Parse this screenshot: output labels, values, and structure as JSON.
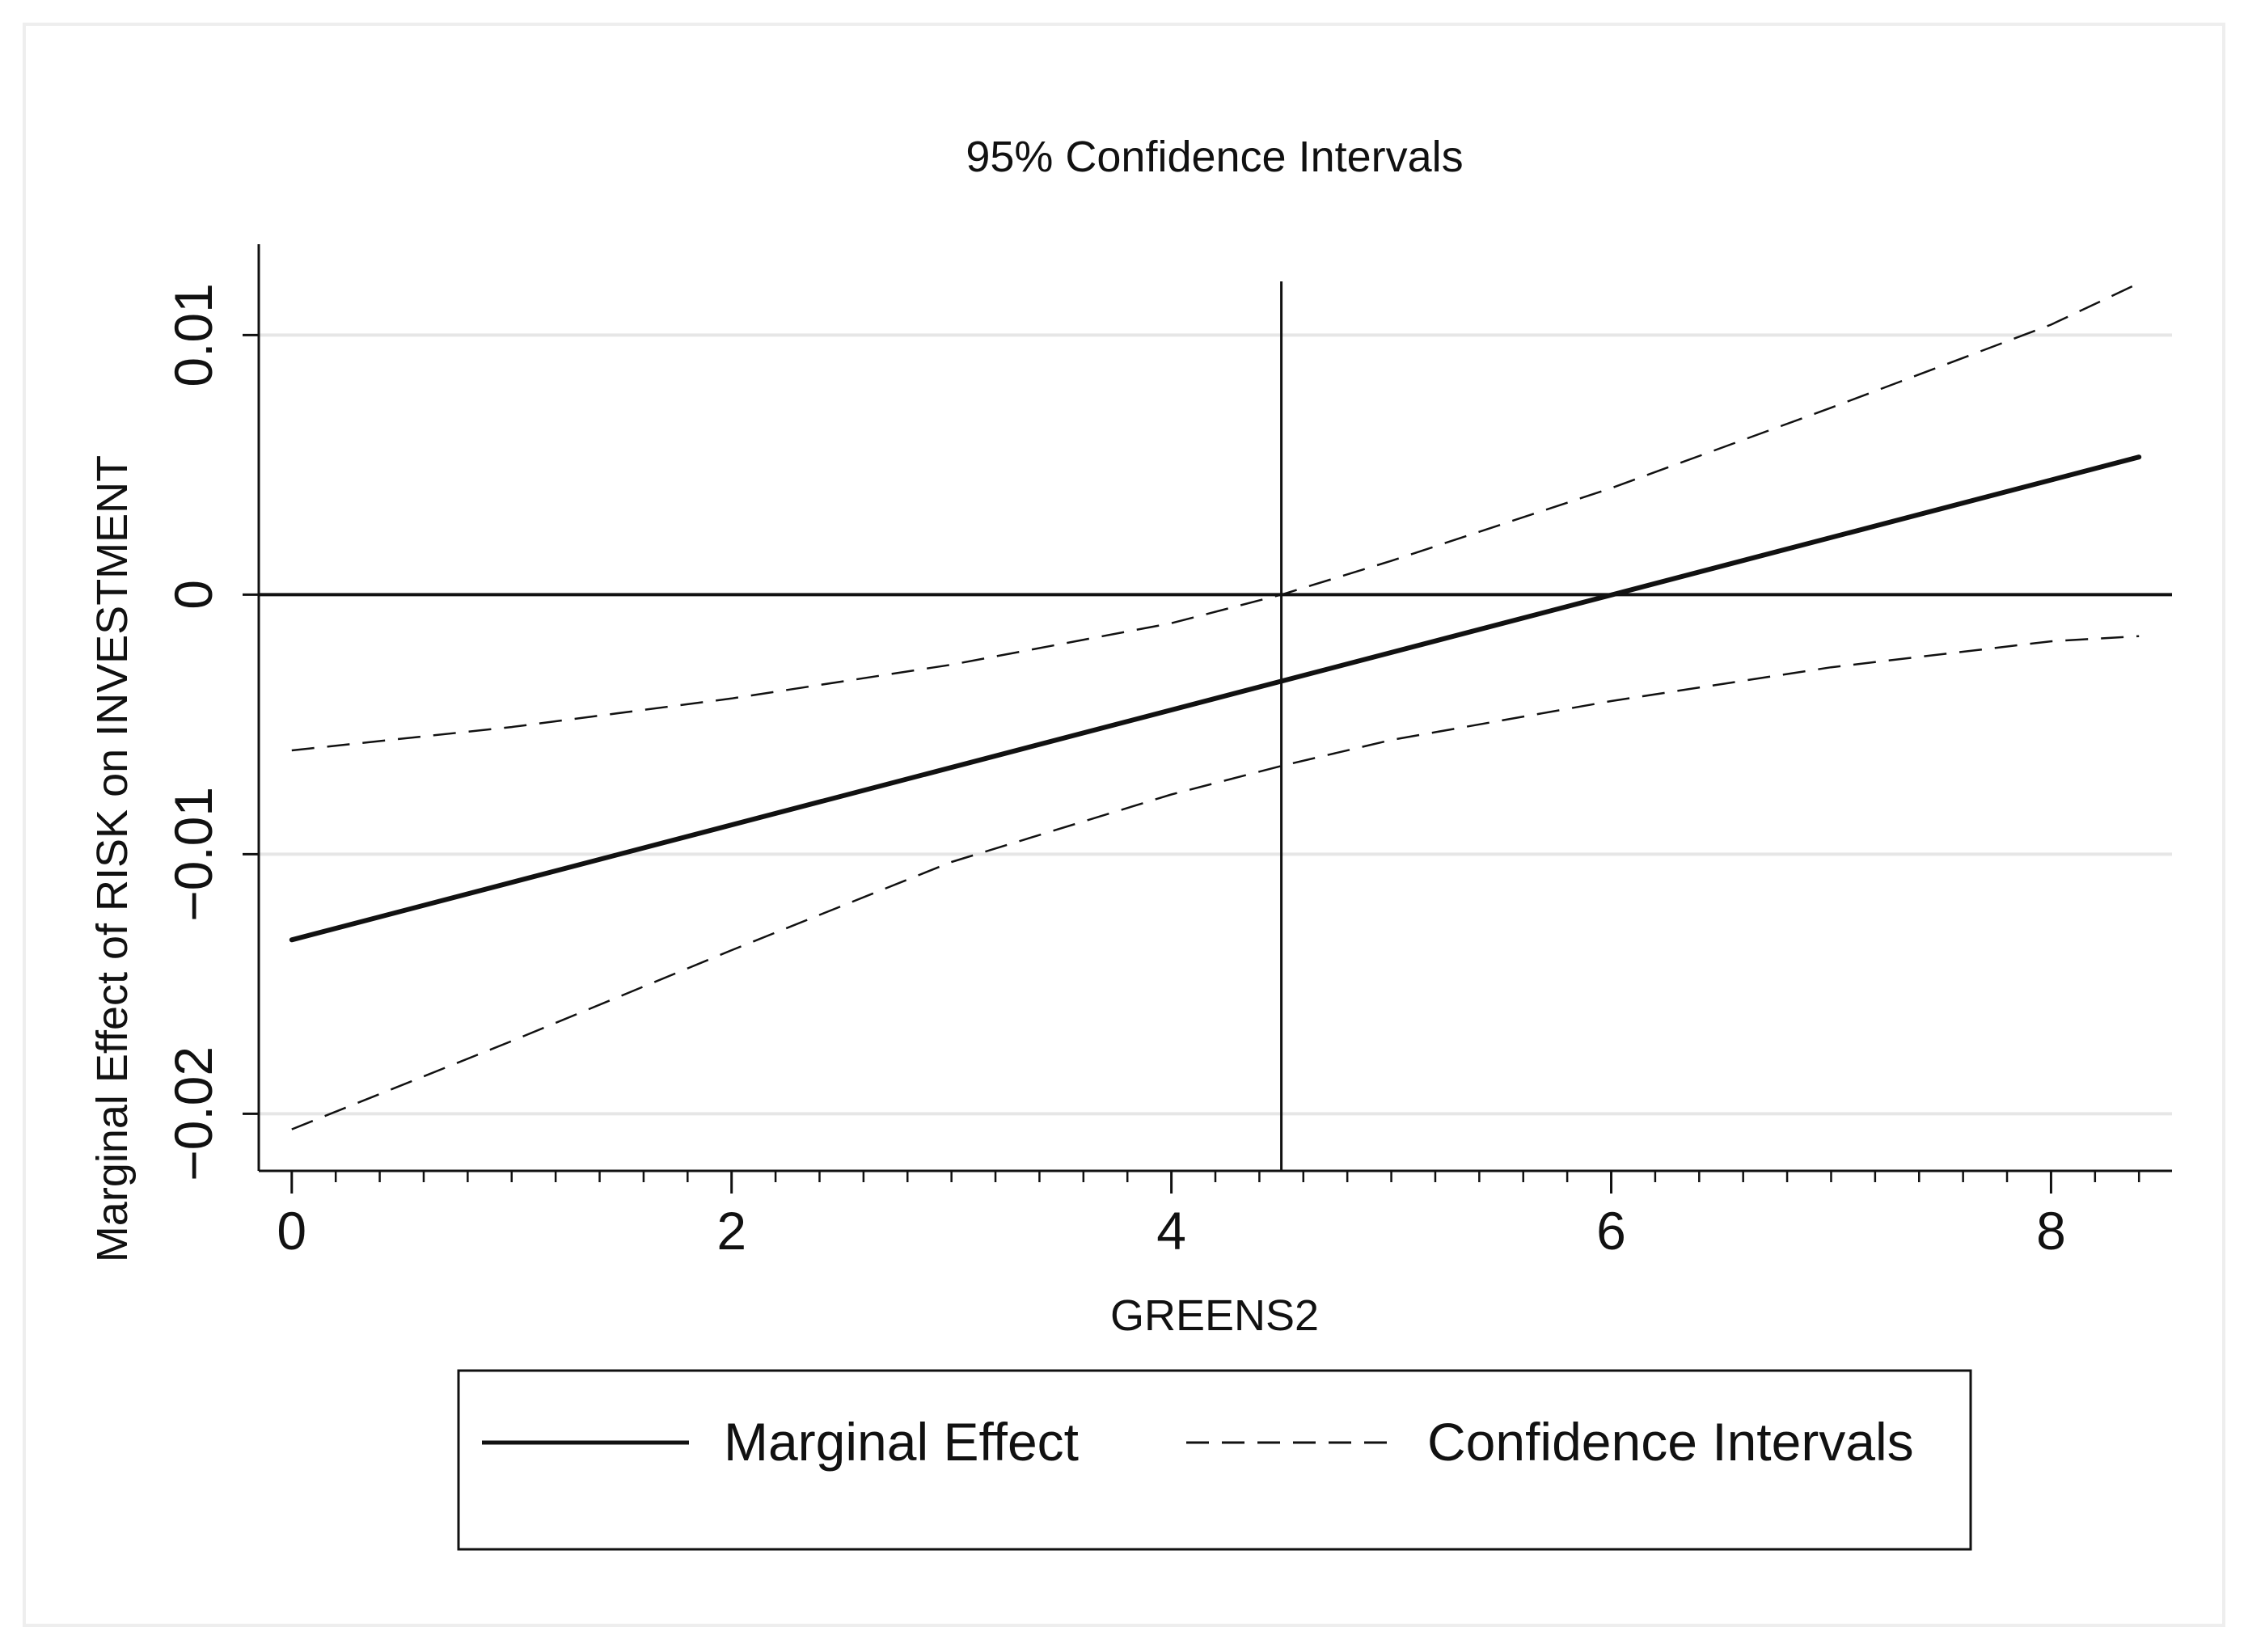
{
  "chart_data": {
    "type": "line",
    "title": "95% Confidence Intervals",
    "xlabel": "GREENS2",
    "ylabel": "Marginal Effect of RISK on INVESTMENT",
    "xlim": [
      -0.15,
      8.55
    ],
    "ylim": [
      -0.0222,
      0.0135
    ],
    "x_ticks": [
      0,
      2,
      4,
      6,
      8
    ],
    "x_tick_labels": [
      "0",
      "2",
      "4",
      "6",
      "8"
    ],
    "x_minor_step": 0.2,
    "y_ticks": [
      -0.02,
      -0.01,
      0,
      0.01
    ],
    "y_tick_labels": [
      "−0.02",
      "−0.01",
      "0",
      "0.01"
    ],
    "grid": true,
    "reference_lines": {
      "y": 0,
      "x": 4.5
    },
    "series": [
      {
        "name": "Marginal Effect",
        "style": "solid",
        "x": [
          0,
          8.4
        ],
        "y": [
          -0.0133,
          0.0053
        ]
      },
      {
        "name": "Confidence Intervals",
        "style": "dashed",
        "bound": "upper",
        "x": [
          0,
          1,
          2,
          3,
          4,
          4.5,
          5,
          6,
          7,
          8,
          8.4
        ],
        "y": [
          -0.006,
          -0.0051,
          -0.004,
          -0.0027,
          -0.0011,
          0.0,
          0.0013,
          0.0041,
          0.0072,
          0.0104,
          0.012
        ]
      },
      {
        "name": "Confidence Intervals",
        "style": "dashed",
        "bound": "lower",
        "x": [
          0,
          1,
          2,
          3,
          4,
          4.5,
          5,
          6,
          7,
          8,
          8.4
        ],
        "y": [
          -0.0206,
          -0.0172,
          -0.0137,
          -0.0103,
          -0.0077,
          -0.0066,
          -0.0056,
          -0.0041,
          -0.0028,
          -0.0018,
          -0.0016
        ]
      }
    ],
    "legend": {
      "position": "bottom",
      "entries": [
        {
          "label": "Marginal Effect",
          "style": "solid"
        },
        {
          "label": "Confidence Intervals",
          "style": "dashed"
        }
      ]
    }
  }
}
